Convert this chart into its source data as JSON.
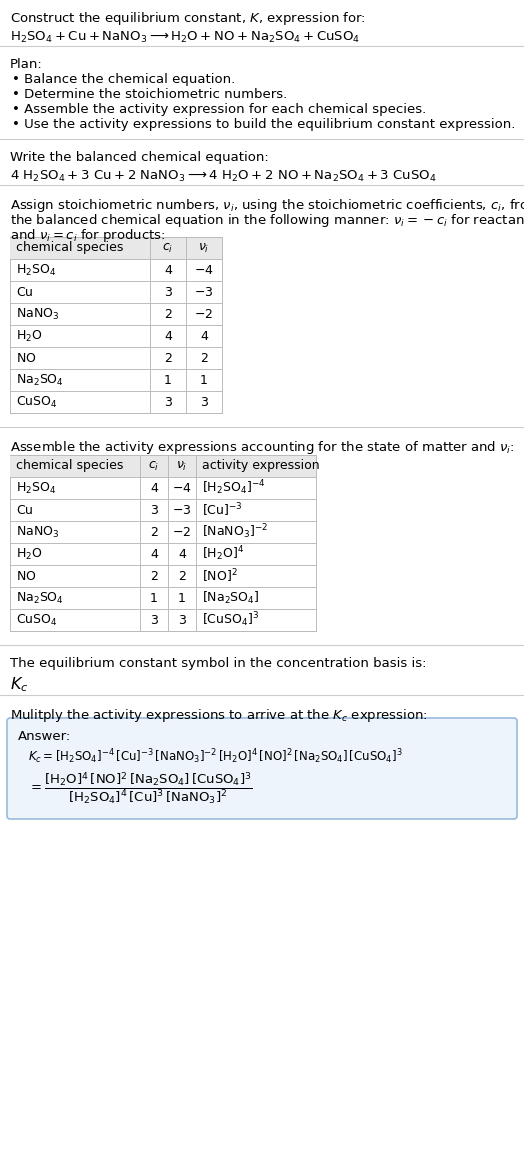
{
  "title_line1": "Construct the equilibrium constant, $K$, expression for:",
  "title_line2": "$\\mathrm{H_2SO_4 + Cu + NaNO_3 \\longrightarrow H_2O + NO + Na_2SO_4 + CuSO_4}$",
  "plan_header": "Plan:",
  "plan_items": [
    "• Balance the chemical equation.",
    "• Determine the stoichiometric numbers.",
    "• Assemble the activity expression for each chemical species.",
    "• Use the activity expressions to build the equilibrium constant expression."
  ],
  "balanced_header": "Write the balanced chemical equation:",
  "balanced_eq": "$\\mathrm{4\\ H_2SO_4 + 3\\ Cu + 2\\ NaNO_3 \\longrightarrow 4\\ H_2O + 2\\ NO + Na_2SO_4 + 3\\ CuSO_4}$",
  "stoich_header1": "Assign stoichiometric numbers, $\\nu_i$, using the stoichiometric coefficients, $c_i$, from",
  "stoich_header2": "the balanced chemical equation in the following manner: $\\nu_i = -c_i$ for reactants",
  "stoich_header3": "and $\\nu_i = c_i$ for products:",
  "table1_cols": [
    "chemical species",
    "$c_i$",
    "$\\nu_i$"
  ],
  "table1_rows": [
    [
      "$\\mathrm{H_2SO_4}$",
      "4",
      "$-4$"
    ],
    [
      "$\\mathrm{Cu}$",
      "3",
      "$-3$"
    ],
    [
      "$\\mathrm{NaNO_3}$",
      "2",
      "$-2$"
    ],
    [
      "$\\mathrm{H_2O}$",
      "4",
      "4"
    ],
    [
      "$\\mathrm{NO}$",
      "2",
      "2"
    ],
    [
      "$\\mathrm{Na_2SO_4}$",
      "1",
      "1"
    ],
    [
      "$\\mathrm{CuSO_4}$",
      "3",
      "3"
    ]
  ],
  "activity_header": "Assemble the activity expressions accounting for the state of matter and $\\nu_i$:",
  "table2_cols": [
    "chemical species",
    "$c_i$",
    "$\\nu_i$",
    "activity expression"
  ],
  "table2_rows": [
    [
      "$\\mathrm{H_2SO_4}$",
      "4",
      "$-4$",
      "$[\\mathrm{H_2SO_4}]^{-4}$"
    ],
    [
      "$\\mathrm{Cu}$",
      "3",
      "$-3$",
      "$[\\mathrm{Cu}]^{-3}$"
    ],
    [
      "$\\mathrm{NaNO_3}$",
      "2",
      "$-2$",
      "$[\\mathrm{NaNO_3}]^{-2}$"
    ],
    [
      "$\\mathrm{H_2O}$",
      "4",
      "4",
      "$[\\mathrm{H_2O}]^4$"
    ],
    [
      "$\\mathrm{NO}$",
      "2",
      "2",
      "$[\\mathrm{NO}]^2$"
    ],
    [
      "$\\mathrm{Na_2SO_4}$",
      "1",
      "1",
      "$[\\mathrm{Na_2SO_4}]$"
    ],
    [
      "$\\mathrm{CuSO_4}$",
      "3",
      "3",
      "$[\\mathrm{CuSO_4}]^3$"
    ]
  ],
  "kc_header": "The equilibrium constant symbol in the concentration basis is:",
  "kc_symbol": "$K_c$",
  "multiply_header": "Mulitply the activity expressions to arrive at the $K_c$ expression:",
  "answer_label": "Answer:",
  "answer_line1": "$K_c = [\\mathrm{H_2SO_4}]^{-4}\\,[\\mathrm{Cu}]^{-3}\\,[\\mathrm{NaNO_3}]^{-2}\\,[\\mathrm{H_2O}]^4\\,[\\mathrm{NO}]^2\\,[\\mathrm{Na_2SO_4}]\\,[\\mathrm{CuSO_4}]^3$",
  "answer_eq_lhs": "$= \\dfrac{[\\mathrm{H_2O}]^4\\,[\\mathrm{NO}]^2\\,[\\mathrm{Na_2SO_4}]\\,[\\mathrm{CuSO_4}]^3}{[\\mathrm{H_2SO_4}]^4\\,[\\mathrm{Cu}]^3\\,[\\mathrm{NaNO_3}]^2}$",
  "bg_color": "#ffffff",
  "table_header_bg": "#e8e8e8",
  "table_line_color": "#bbbbbb",
  "answer_box_bg": "#eef4fb",
  "answer_box_border": "#99bbdd",
  "text_color": "#000000",
  "font_size": 9.5,
  "small_font": 9.0
}
